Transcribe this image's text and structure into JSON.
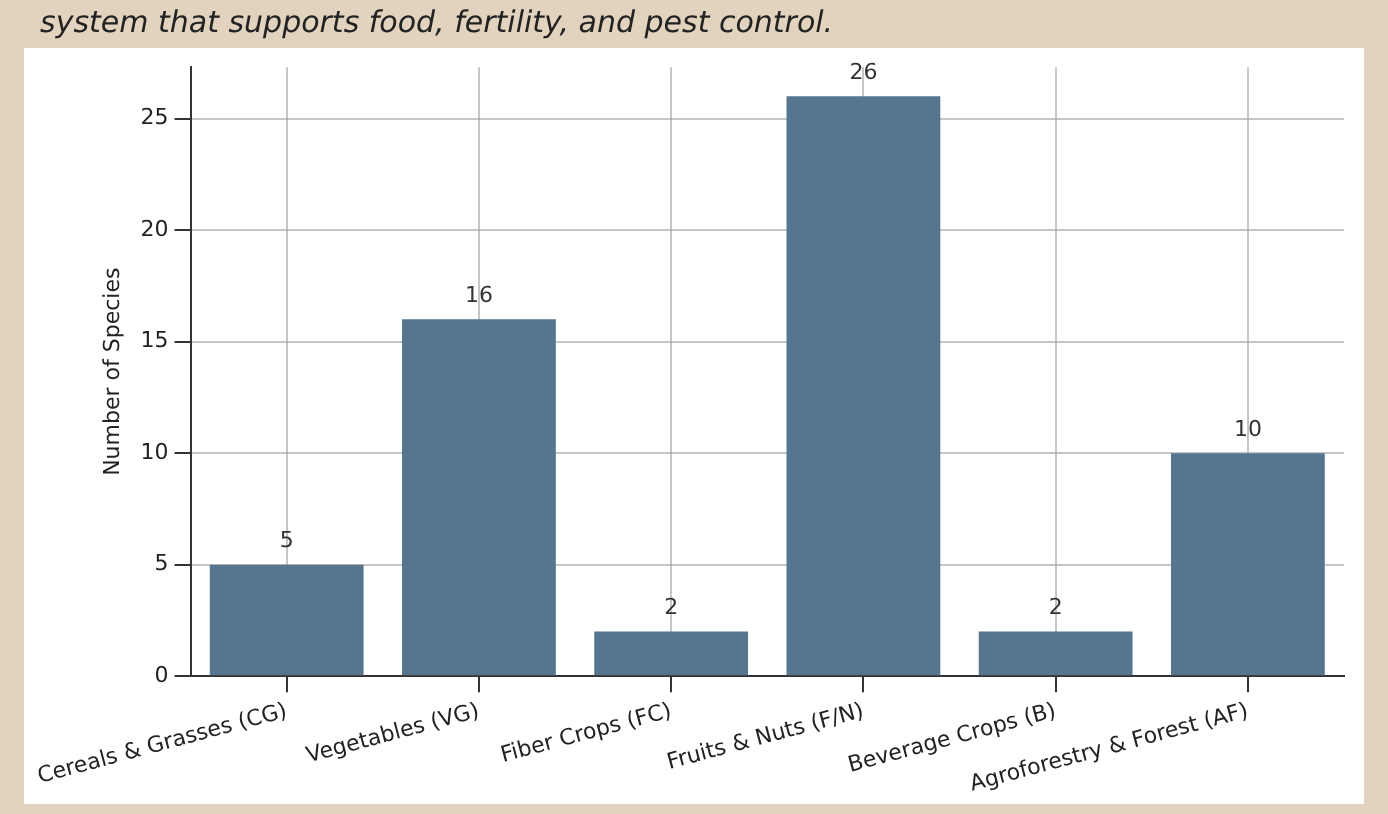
{
  "chart_data": {
    "type": "bar",
    "title": "system that supports food, fertility, and pest control.",
    "categories": [
      "Cereals & Grasses (CG)",
      "Vegetables (VG)",
      "Fiber Crops (FC)",
      "Fruits & Nuts (F/N)",
      "Beverage Crops (B)",
      "Agroforestry & Forest (AF)"
    ],
    "values": [
      5,
      16,
      2,
      26,
      2,
      10
    ],
    "color": "#56758f",
    "ylabel": "Number of Species",
    "ylim": [
      0,
      27.3
    ],
    "yticks": [
      0,
      5,
      10,
      15,
      20,
      25
    ],
    "grid": true,
    "legend": false,
    "data_labels": true
  }
}
